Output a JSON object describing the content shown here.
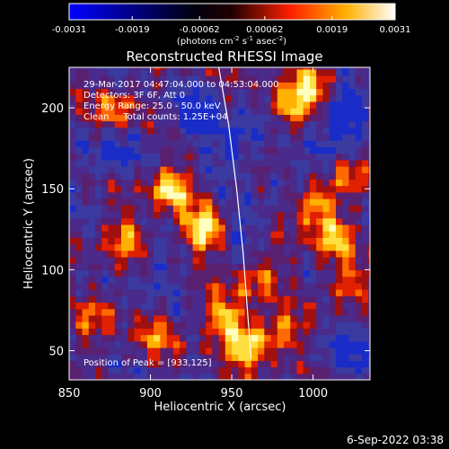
{
  "colorbar": {
    "ticks": [
      "-0.0031",
      "-0.0019",
      "-0.00062",
      "0.00062",
      "0.0019",
      "0.0031"
    ],
    "unit_label": "(photons cm",
    "unit_exp1": "-2",
    "unit_mid": " s",
    "unit_exp2": "-1",
    "unit_mid2": " asec",
    "unit_exp3": "-2",
    "unit_end": ")",
    "range": [
      -0.0031,
      0.0031
    ],
    "colors": [
      "#0000ff",
      "#000000",
      "#ff0000",
      "#ffff00",
      "#ffffff"
    ]
  },
  "chart_data": {
    "type": "heatmap",
    "title": "Reconstructed RHESSI Image",
    "xlabel": "Heliocentric X (arcsec)",
    "ylabel": "Heliocentric Y (arcsec)",
    "xlim": [
      850,
      1035
    ],
    "ylim": [
      32,
      225
    ],
    "xticks": [
      850,
      900,
      950,
      1000
    ],
    "yticks": [
      50,
      100,
      150,
      200
    ],
    "xtick_labels": [
      "850",
      "900",
      "950",
      "1000"
    ],
    "ytick_labels": [
      "50",
      "100",
      "150",
      "200"
    ],
    "annotations": {
      "time_range": "29-Mar-2017 04:47:04.000 to 04:53:04.000",
      "detectors": "Detectors: 3F 6F, Att 0",
      "energy": "Energy Range: 25.0 - 50.0 keV",
      "clean": "Clean     Total counts: 1.25E+04",
      "peak": "Position of Peak = [933,125]"
    },
    "peak_position": [
      933,
      125
    ],
    "limb_curve": [
      [
        942,
        225
      ],
      [
        948,
        190
      ],
      [
        953,
        150
      ],
      [
        957,
        110
      ],
      [
        960,
        70
      ],
      [
        962,
        45
      ]
    ],
    "bright_regions": [
      {
        "x": 912,
        "y": 150,
        "level": 0.85
      },
      {
        "x": 933,
        "y": 125,
        "level": 1.0
      },
      {
        "x": 885,
        "y": 120,
        "level": 0.6
      },
      {
        "x": 960,
        "y": 55,
        "level": 0.9
      },
      {
        "x": 945,
        "y": 70,
        "level": 0.7
      },
      {
        "x": 1000,
        "y": 140,
        "level": 0.75
      },
      {
        "x": 1012,
        "y": 120,
        "level": 0.7
      },
      {
        "x": 985,
        "y": 200,
        "level": 0.7
      },
      {
        "x": 1000,
        "y": 215,
        "level": 0.75
      },
      {
        "x": 980,
        "y": 60,
        "level": 0.55
      },
      {
        "x": 1020,
        "y": 90,
        "level": 0.5
      },
      {
        "x": 870,
        "y": 75,
        "level": 0.5
      },
      {
        "x": 905,
        "y": 60,
        "level": 0.45
      },
      {
        "x": 965,
        "y": 95,
        "level": 0.6
      },
      {
        "x": 880,
        "y": 200,
        "level": 0.55
      },
      {
        "x": 1025,
        "y": 160,
        "level": 0.55
      }
    ],
    "negative_regions": [
      {
        "x": 925,
        "y": 195,
        "level": 0.7
      },
      {
        "x": 955,
        "y": 180,
        "level": 0.65
      },
      {
        "x": 1020,
        "y": 200,
        "level": 0.7
      },
      {
        "x": 1025,
        "y": 55,
        "level": 0.6
      },
      {
        "x": 875,
        "y": 170,
        "level": 0.5
      },
      {
        "x": 1005,
        "y": 170,
        "level": 0.5
      },
      {
        "x": 960,
        "y": 130,
        "level": 0.45
      },
      {
        "x": 900,
        "y": 95,
        "level": 0.4
      }
    ]
  },
  "footer": {
    "timestamp": "6-Sep-2022 03:38"
  }
}
